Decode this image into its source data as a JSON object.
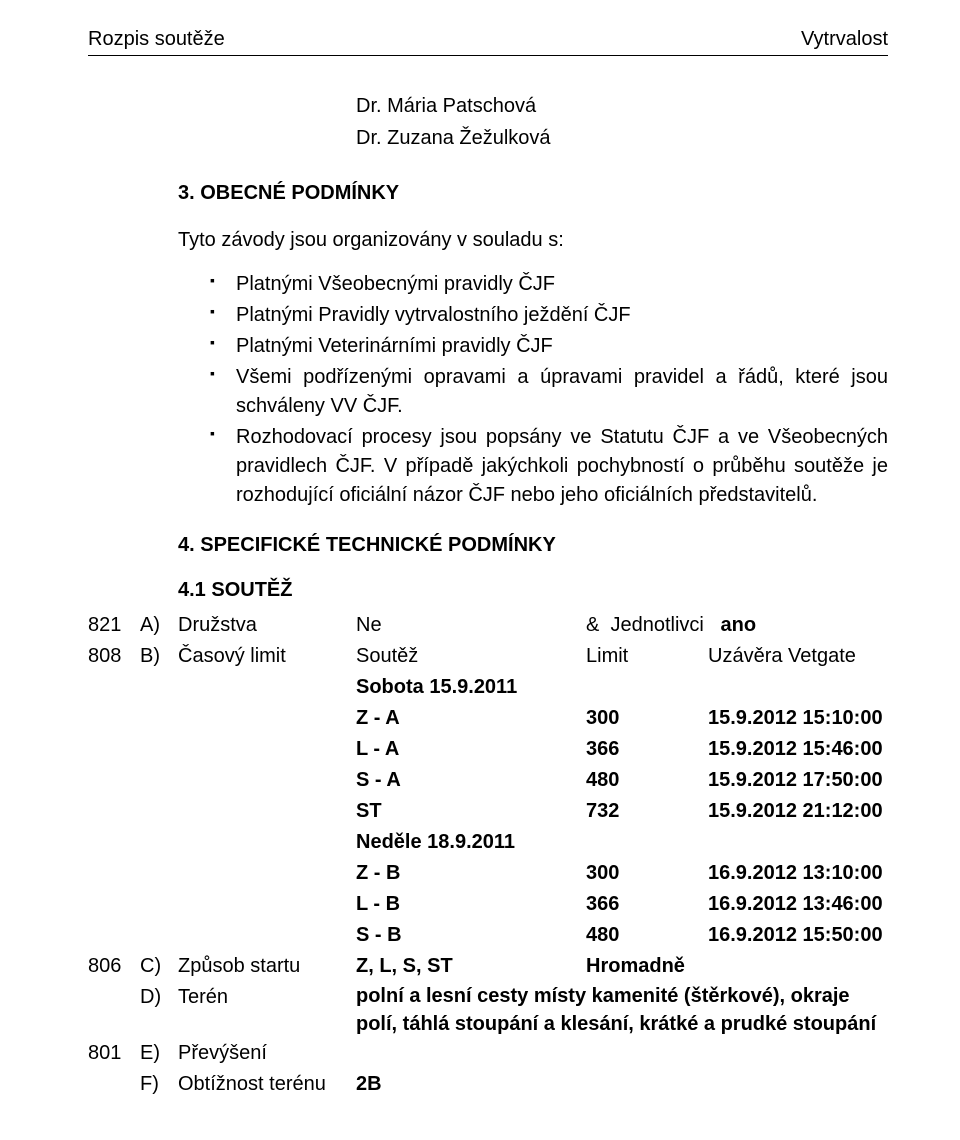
{
  "header": {
    "left": "Rozpis soutěže",
    "right": "Vytrvalost"
  },
  "names": [
    "Dr. Mária Patschová",
    "Dr. Zuzana Žežulková"
  ],
  "section3": {
    "title": "3. OBECNÉ PODMÍNKY",
    "intro": "Tyto závody jsou organizovány v souladu s:",
    "bullets": [
      "Platnými Všeobecnými pravidly ČJF",
      "Platnými Pravidly vytrvalostního ježdění ČJF",
      "Platnými Veterinárními pravidly ČJF",
      "Všemi podřízenými opravami a úpravami pravidel a řádů, které jsou schváleny VV ČJF.",
      "Rozhodovací procesy jsou popsány ve Statutu ČJF a ve Všeobecných pravidlech ČJF. V případě jakýchkoli pochybností o průběhu soutěže je rozhodující oficiální názor ČJF nebo jeho oficiálních představitelů."
    ]
  },
  "section4": {
    "title": "4. SPECIFICKÉ TECHNICKÉ PODMÍNKY",
    "sub": "4.1       SOUTĚŽ",
    "rowA": {
      "code": "821",
      "letter": "A)",
      "label": "Družstva",
      "mid": "Ne",
      "right": "&  Jednotlivci   ano"
    },
    "rowB": {
      "code": "808",
      "letter": "B)",
      "label": "Časový limit",
      "h1": "Soutěž",
      "h2": "Limit",
      "h3": "Uzávěra Vetgate",
      "day1": "Sobota 15.9.2011",
      "lines1": [
        {
          "label": "Z - A",
          "num": "300",
          "time": "15.9.2012 15:10:00"
        },
        {
          "label": "L - A",
          "num": "366",
          "time": "15.9.2012 15:46:00"
        },
        {
          "label": "S - A",
          "num": "480",
          "time": "15.9.2012 17:50:00"
        },
        {
          "label": "ST",
          "num": "732",
          "time": "15.9.2012 21:12:00"
        }
      ],
      "day2": "Neděle 18.9.2011",
      "lines2": [
        {
          "label": "Z - B",
          "num": "300",
          "time": "16.9.2012 13:10:00"
        },
        {
          "label": "L - B",
          "num": "366",
          "time": "16.9.2012 13:46:00"
        },
        {
          "label": "S - B",
          "num": "480",
          "time": "16.9.2012 15:50:00"
        }
      ]
    },
    "rowC": {
      "code": "806",
      "letter": "C)",
      "label": "Způsob startu",
      "mid": "Z, L, S, ST",
      "right": "Hromadně"
    },
    "rowD": {
      "letter": "D)",
      "label": "Terén",
      "text": "polní a lesní cesty místy kamenité (štěrkové), okraje polí, táhlá stoupání a klesání, krátké a prudké stoupání"
    },
    "rowE": {
      "code": "801",
      "letter": "E)",
      "label": "Převýšení"
    },
    "rowF": {
      "letter": "F)",
      "label": "Obtížnost terénu",
      "val": "2B"
    }
  }
}
